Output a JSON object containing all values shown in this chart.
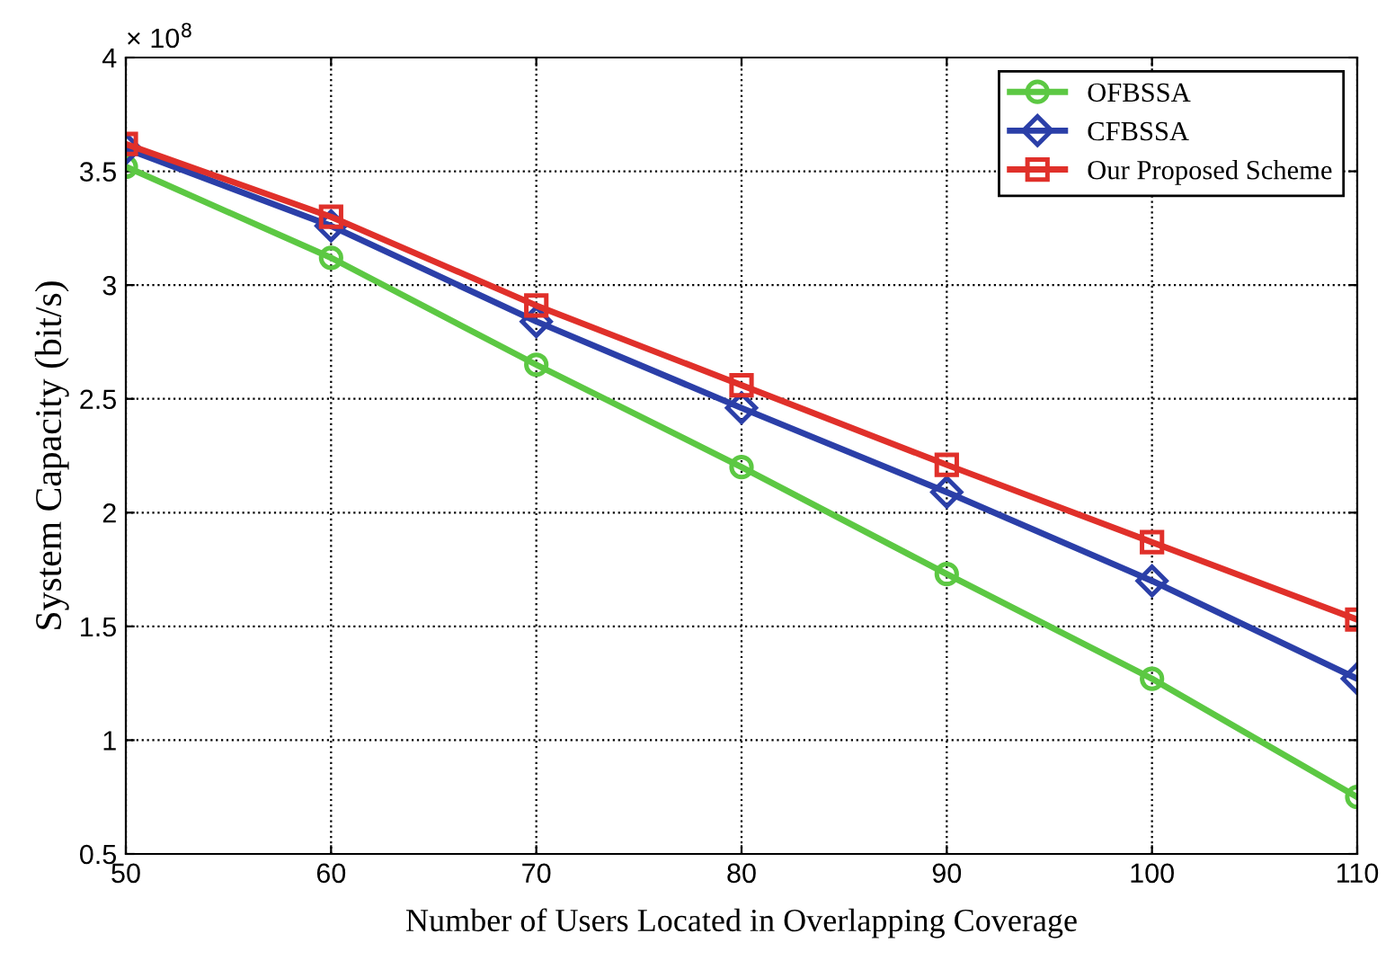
{
  "chart_data": {
    "type": "line",
    "xlabel": "Number of Users Located in Overlapping Coverage",
    "ylabel": "System Capacity (bit/s)",
    "annotations": [
      "× 10$^{8}$"
    ],
    "x": [
      50,
      60,
      70,
      80,
      90,
      100,
      110
    ],
    "series": [
      {
        "name": "OFBSSA",
        "color": "#5cc843",
        "marker": "circle",
        "values": [
          3.52,
          3.12,
          2.65,
          2.2,
          1.73,
          1.27,
          0.75
        ]
      },
      {
        "name": "CFBSSA",
        "color": "#2b3fa8",
        "marker": "diamond",
        "values": [
          3.6,
          3.26,
          2.84,
          2.46,
          2.09,
          1.7,
          1.27
        ]
      },
      {
        "name": "Our Proposed Scheme",
        "color": "#e0302a",
        "marker": "square",
        "values": [
          3.62,
          3.3,
          2.91,
          2.56,
          2.21,
          1.87,
          1.53
        ]
      }
    ],
    "xlim": [
      50,
      110
    ],
    "xticks": [
      50,
      60,
      70,
      80,
      90,
      100,
      110
    ],
    "ylim": [
      0.5,
      4
    ],
    "yticks": [
      0.5,
      1,
      1.5,
      2,
      2.5,
      3,
      3.5,
      4
    ],
    "grid": true,
    "legend": "top right",
    "line_style": "solid"
  }
}
